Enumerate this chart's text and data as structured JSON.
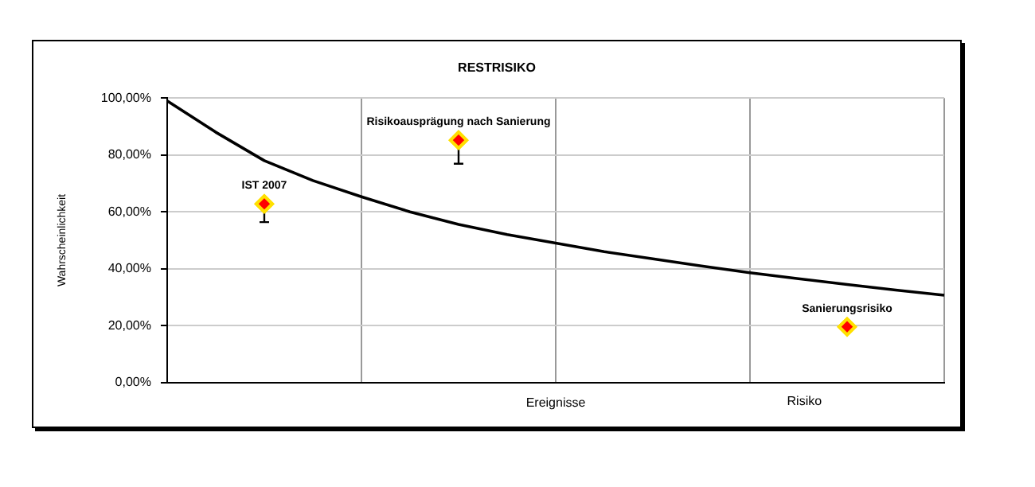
{
  "chart_data": {
    "type": "line",
    "title": "RESTRISIKO",
    "xlabel": "Ereignisse",
    "ylabel": "Wahrscheinlichkeit",
    "categories": [
      null,
      null,
      null,
      null,
      null,
      null,
      null,
      null,
      null,
      null,
      null,
      null,
      null,
      null,
      null,
      null,
      null
    ],
    "ylim": [
      0,
      100
    ],
    "yticks": [
      {
        "value": 0,
        "label": "0,00%"
      },
      {
        "value": 20,
        "label": "20,00%"
      },
      {
        "value": 40,
        "label": "40,00%"
      },
      {
        "value": 60,
        "label": "60,00%"
      },
      {
        "value": 80,
        "label": "80,00%"
      },
      {
        "value": 100,
        "label": "100,00%"
      }
    ],
    "grid": true,
    "legend": false,
    "tick_labels": "y",
    "series": [
      {
        "type": "line",
        "color": "#000000",
        "marker": "none",
        "values": [
          99,
          88,
          78,
          71,
          65.3,
          60,
          55.6,
          52,
          49,
          46,
          43.5,
          41,
          38.6,
          36.5,
          34.5,
          32.5,
          30.7
        ]
      },
      {
        "type": "scatter",
        "color": "#ff0000",
        "marker": "diamond",
        "values": [
          null,
          null,
          62.8,
          null,
          null,
          null,
          85.2,
          null,
          null,
          null,
          null,
          null,
          null,
          null,
          19.6,
          null,
          null
        ],
        "errors": [
          null,
          null,
          [
            56.4,
            62.8
          ],
          null,
          null,
          null,
          [
            76.9,
            85.2
          ],
          null,
          null,
          null,
          null,
          null,
          null,
          null,
          [
            18.5,
            19.6
          ],
          null,
          null
        ]
      }
    ],
    "annotations": [
      {
        "text": "IST 2007",
        "y": 62.8
      },
      {
        "text": "Risikoausprägung nach Sanierung",
        "y": 85.2
      },
      {
        "text": "Sanierungsrisiko",
        "y": 19.6
      },
      "Risiko"
    ]
  }
}
